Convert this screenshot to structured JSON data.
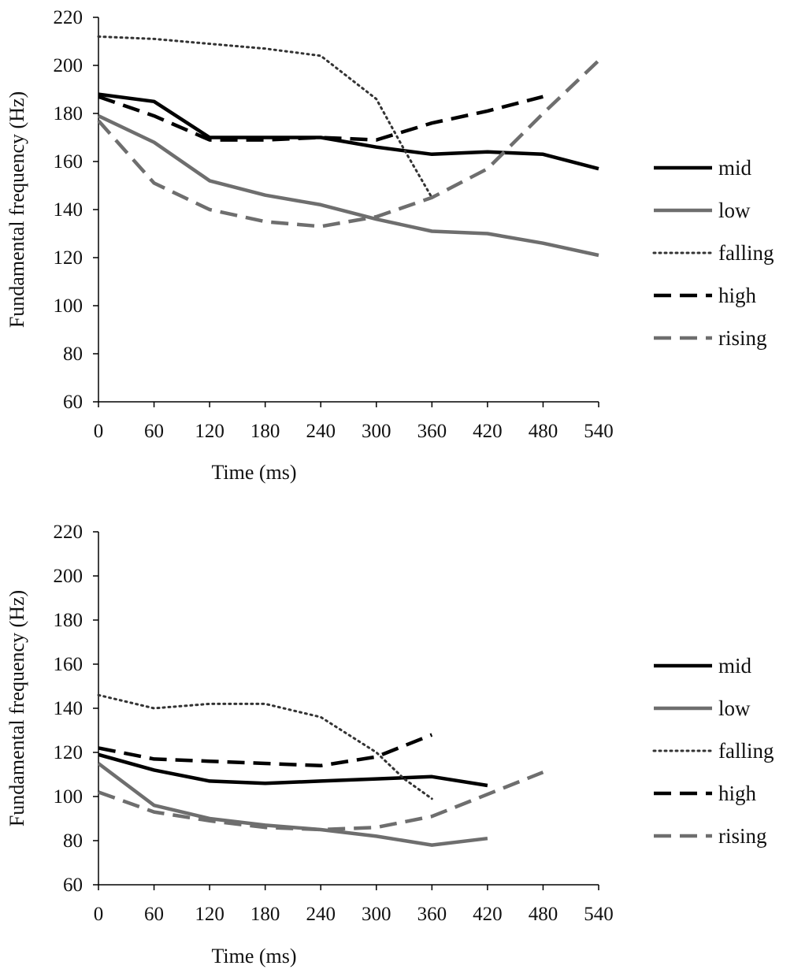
{
  "chart_data": [
    {
      "type": "line",
      "title": "",
      "xlabel": "Time (ms)",
      "ylabel": "Fundamental frequency (Hz)",
      "xlim": [
        0,
        540
      ],
      "ylim": [
        60,
        220
      ],
      "xticks": [
        "0",
        "60",
        "120",
        "180",
        "240",
        "300",
        "360",
        "420",
        "480",
        "540"
      ],
      "yticks": [
        "60",
        "80",
        "100",
        "120",
        "140",
        "160",
        "180",
        "200",
        "220"
      ],
      "legend_position": "right",
      "grid": false,
      "series": [
        {
          "name": "mid",
          "color": "#000000",
          "style": "solid",
          "x": [
            0,
            60,
            120,
            180,
            240,
            300,
            360,
            420,
            480,
            540
          ],
          "y": [
            188,
            185,
            170,
            170,
            170,
            166,
            163,
            164,
            163,
            157
          ]
        },
        {
          "name": "low",
          "color": "#6e6e6e",
          "style": "solid",
          "x": [
            0,
            60,
            120,
            180,
            240,
            300,
            360,
            420,
            480,
            540
          ],
          "y": [
            179,
            168,
            152,
            146,
            142,
            136,
            131,
            130,
            126,
            121
          ]
        },
        {
          "name": "falling",
          "color": "#333333",
          "style": "dotted",
          "x": [
            0,
            60,
            120,
            180,
            240,
            300,
            330,
            360
          ],
          "y": [
            212,
            211,
            209,
            207,
            204,
            186,
            165,
            145
          ]
        },
        {
          "name": "high",
          "color": "#000000",
          "style": "dashed",
          "x": [
            0,
            60,
            120,
            180,
            240,
            300,
            360,
            420,
            480
          ],
          "y": [
            187,
            179,
            169,
            169,
            170,
            169,
            176,
            181,
            187
          ]
        },
        {
          "name": "rising",
          "color": "#6e6e6e",
          "style": "dashed",
          "x": [
            0,
            60,
            120,
            180,
            240,
            300,
            360,
            420,
            480,
            540
          ],
          "y": [
            177,
            151,
            140,
            135,
            133,
            137,
            145,
            157,
            180,
            202
          ]
        }
      ]
    },
    {
      "type": "line",
      "title": "",
      "xlabel": "Time (ms)",
      "ylabel": "Fundamental frequency (Hz)",
      "xlim": [
        0,
        540
      ],
      "ylim": [
        60,
        220
      ],
      "xticks": [
        "0",
        "60",
        "120",
        "180",
        "240",
        "300",
        "360",
        "420",
        "480",
        "540"
      ],
      "yticks": [
        "60",
        "80",
        "100",
        "120",
        "140",
        "160",
        "180",
        "200",
        "220"
      ],
      "legend_position": "right",
      "grid": false,
      "series": [
        {
          "name": "mid",
          "color": "#000000",
          "style": "solid",
          "x": [
            0,
            60,
            120,
            180,
            240,
            300,
            360,
            420
          ],
          "y": [
            119,
            112,
            107,
            106,
            107,
            108,
            109,
            105
          ]
        },
        {
          "name": "low",
          "color": "#6e6e6e",
          "style": "solid",
          "x": [
            0,
            60,
            120,
            180,
            240,
            300,
            360,
            420
          ],
          "y": [
            115,
            96,
            90,
            87,
            85,
            82,
            78,
            81
          ]
        },
        {
          "name": "falling",
          "color": "#333333",
          "style": "dotted",
          "x": [
            0,
            60,
            120,
            180,
            240,
            300,
            330,
            360
          ],
          "y": [
            146,
            140,
            142,
            142,
            136,
            120,
            108,
            99
          ]
        },
        {
          "name": "high",
          "color": "#000000",
          "style": "dashed",
          "x": [
            0,
            60,
            120,
            180,
            240,
            300,
            360
          ],
          "y": [
            122,
            117,
            116,
            115,
            114,
            118,
            128
          ]
        },
        {
          "name": "rising",
          "color": "#6e6e6e",
          "style": "dashed",
          "x": [
            0,
            60,
            120,
            180,
            240,
            300,
            360,
            420,
            480
          ],
          "y": [
            102,
            93,
            89,
            86,
            85,
            86,
            91,
            101,
            111
          ]
        }
      ]
    }
  ]
}
